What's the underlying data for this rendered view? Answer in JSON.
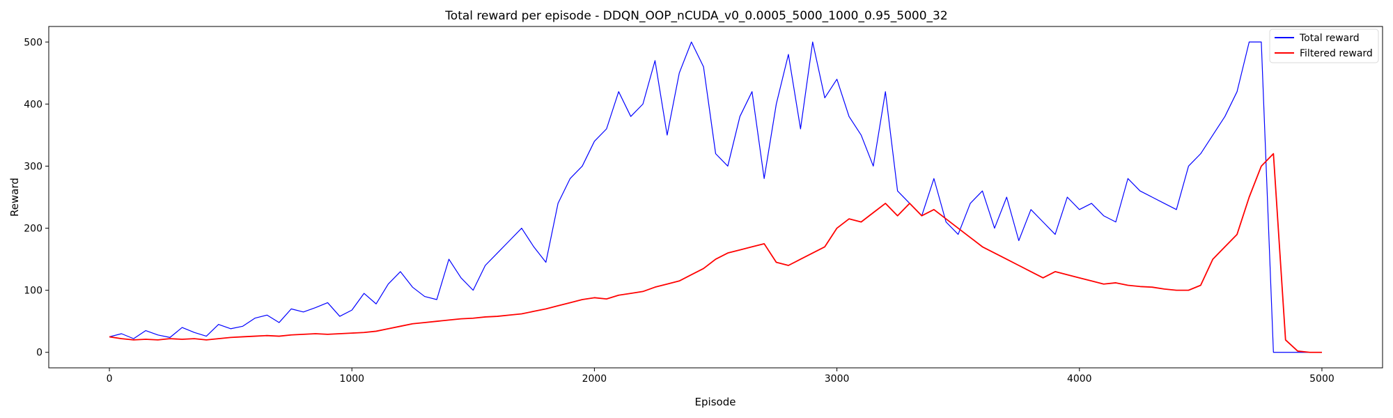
{
  "chart_data": {
    "type": "line",
    "title": "Total reward per episode - DDQN_OOP_nCUDA_v0_0.0005_5000_1000_0.95_5000_32",
    "xlabel": "Episode",
    "ylabel": "Reward",
    "xlim": [
      -250,
      5250
    ],
    "ylim": [
      -25,
      525
    ],
    "xticks": [
      0,
      1000,
      2000,
      3000,
      4000,
      5000
    ],
    "yticks": [
      0,
      100,
      200,
      300,
      400,
      500
    ],
    "grid": false,
    "legend_position": "top-right",
    "series": [
      {
        "name": "Total reward",
        "color": "#0000ff",
        "x_start": 0,
        "x_step": 50,
        "values": [
          25,
          30,
          22,
          35,
          28,
          24,
          40,
          32,
          26,
          45,
          38,
          42,
          55,
          60,
          48,
          70,
          65,
          72,
          80,
          58,
          68,
          95,
          78,
          110,
          130,
          105,
          90,
          85,
          150,
          120,
          100,
          140,
          160,
          180,
          200,
          170,
          145,
          240,
          280,
          300,
          340,
          360,
          420,
          380,
          400,
          470,
          350,
          450,
          500,
          460,
          320,
          300,
          380,
          420,
          280,
          400,
          480,
          360,
          500,
          410,
          440,
          380,
          350,
          300,
          420,
          260,
          240,
          220,
          280,
          210,
          190,
          240,
          260,
          200,
          250,
          180,
          230,
          210,
          190,
          250,
          230,
          240,
          220,
          210,
          280,
          260,
          250,
          240,
          230,
          300,
          320,
          350,
          380,
          420,
          500,
          500,
          0,
          0,
          0,
          0,
          0
        ]
      },
      {
        "name": "Filtered reward",
        "color": "#ff0000",
        "x_start": 0,
        "x_step": 50,
        "values": [
          25,
          22,
          20,
          21,
          20,
          22,
          21,
          22,
          20,
          22,
          24,
          25,
          26,
          27,
          26,
          28,
          29,
          30,
          29,
          30,
          31,
          32,
          34,
          38,
          42,
          46,
          48,
          50,
          52,
          54,
          55,
          57,
          58,
          60,
          62,
          66,
          70,
          75,
          80,
          85,
          88,
          86,
          92,
          95,
          98,
          105,
          110,
          115,
          125,
          135,
          150,
          160,
          165,
          170,
          175,
          145,
          140,
          150,
          160,
          170,
          200,
          215,
          210,
          225,
          240,
          220,
          240,
          220,
          230,
          215,
          200,
          185,
          170,
          160,
          150,
          140,
          130,
          120,
          130,
          125,
          120,
          115,
          110,
          112,
          108,
          106,
          105,
          102,
          100,
          100,
          108,
          150,
          170,
          190,
          250,
          300,
          320,
          20,
          2,
          0,
          0
        ]
      }
    ]
  }
}
